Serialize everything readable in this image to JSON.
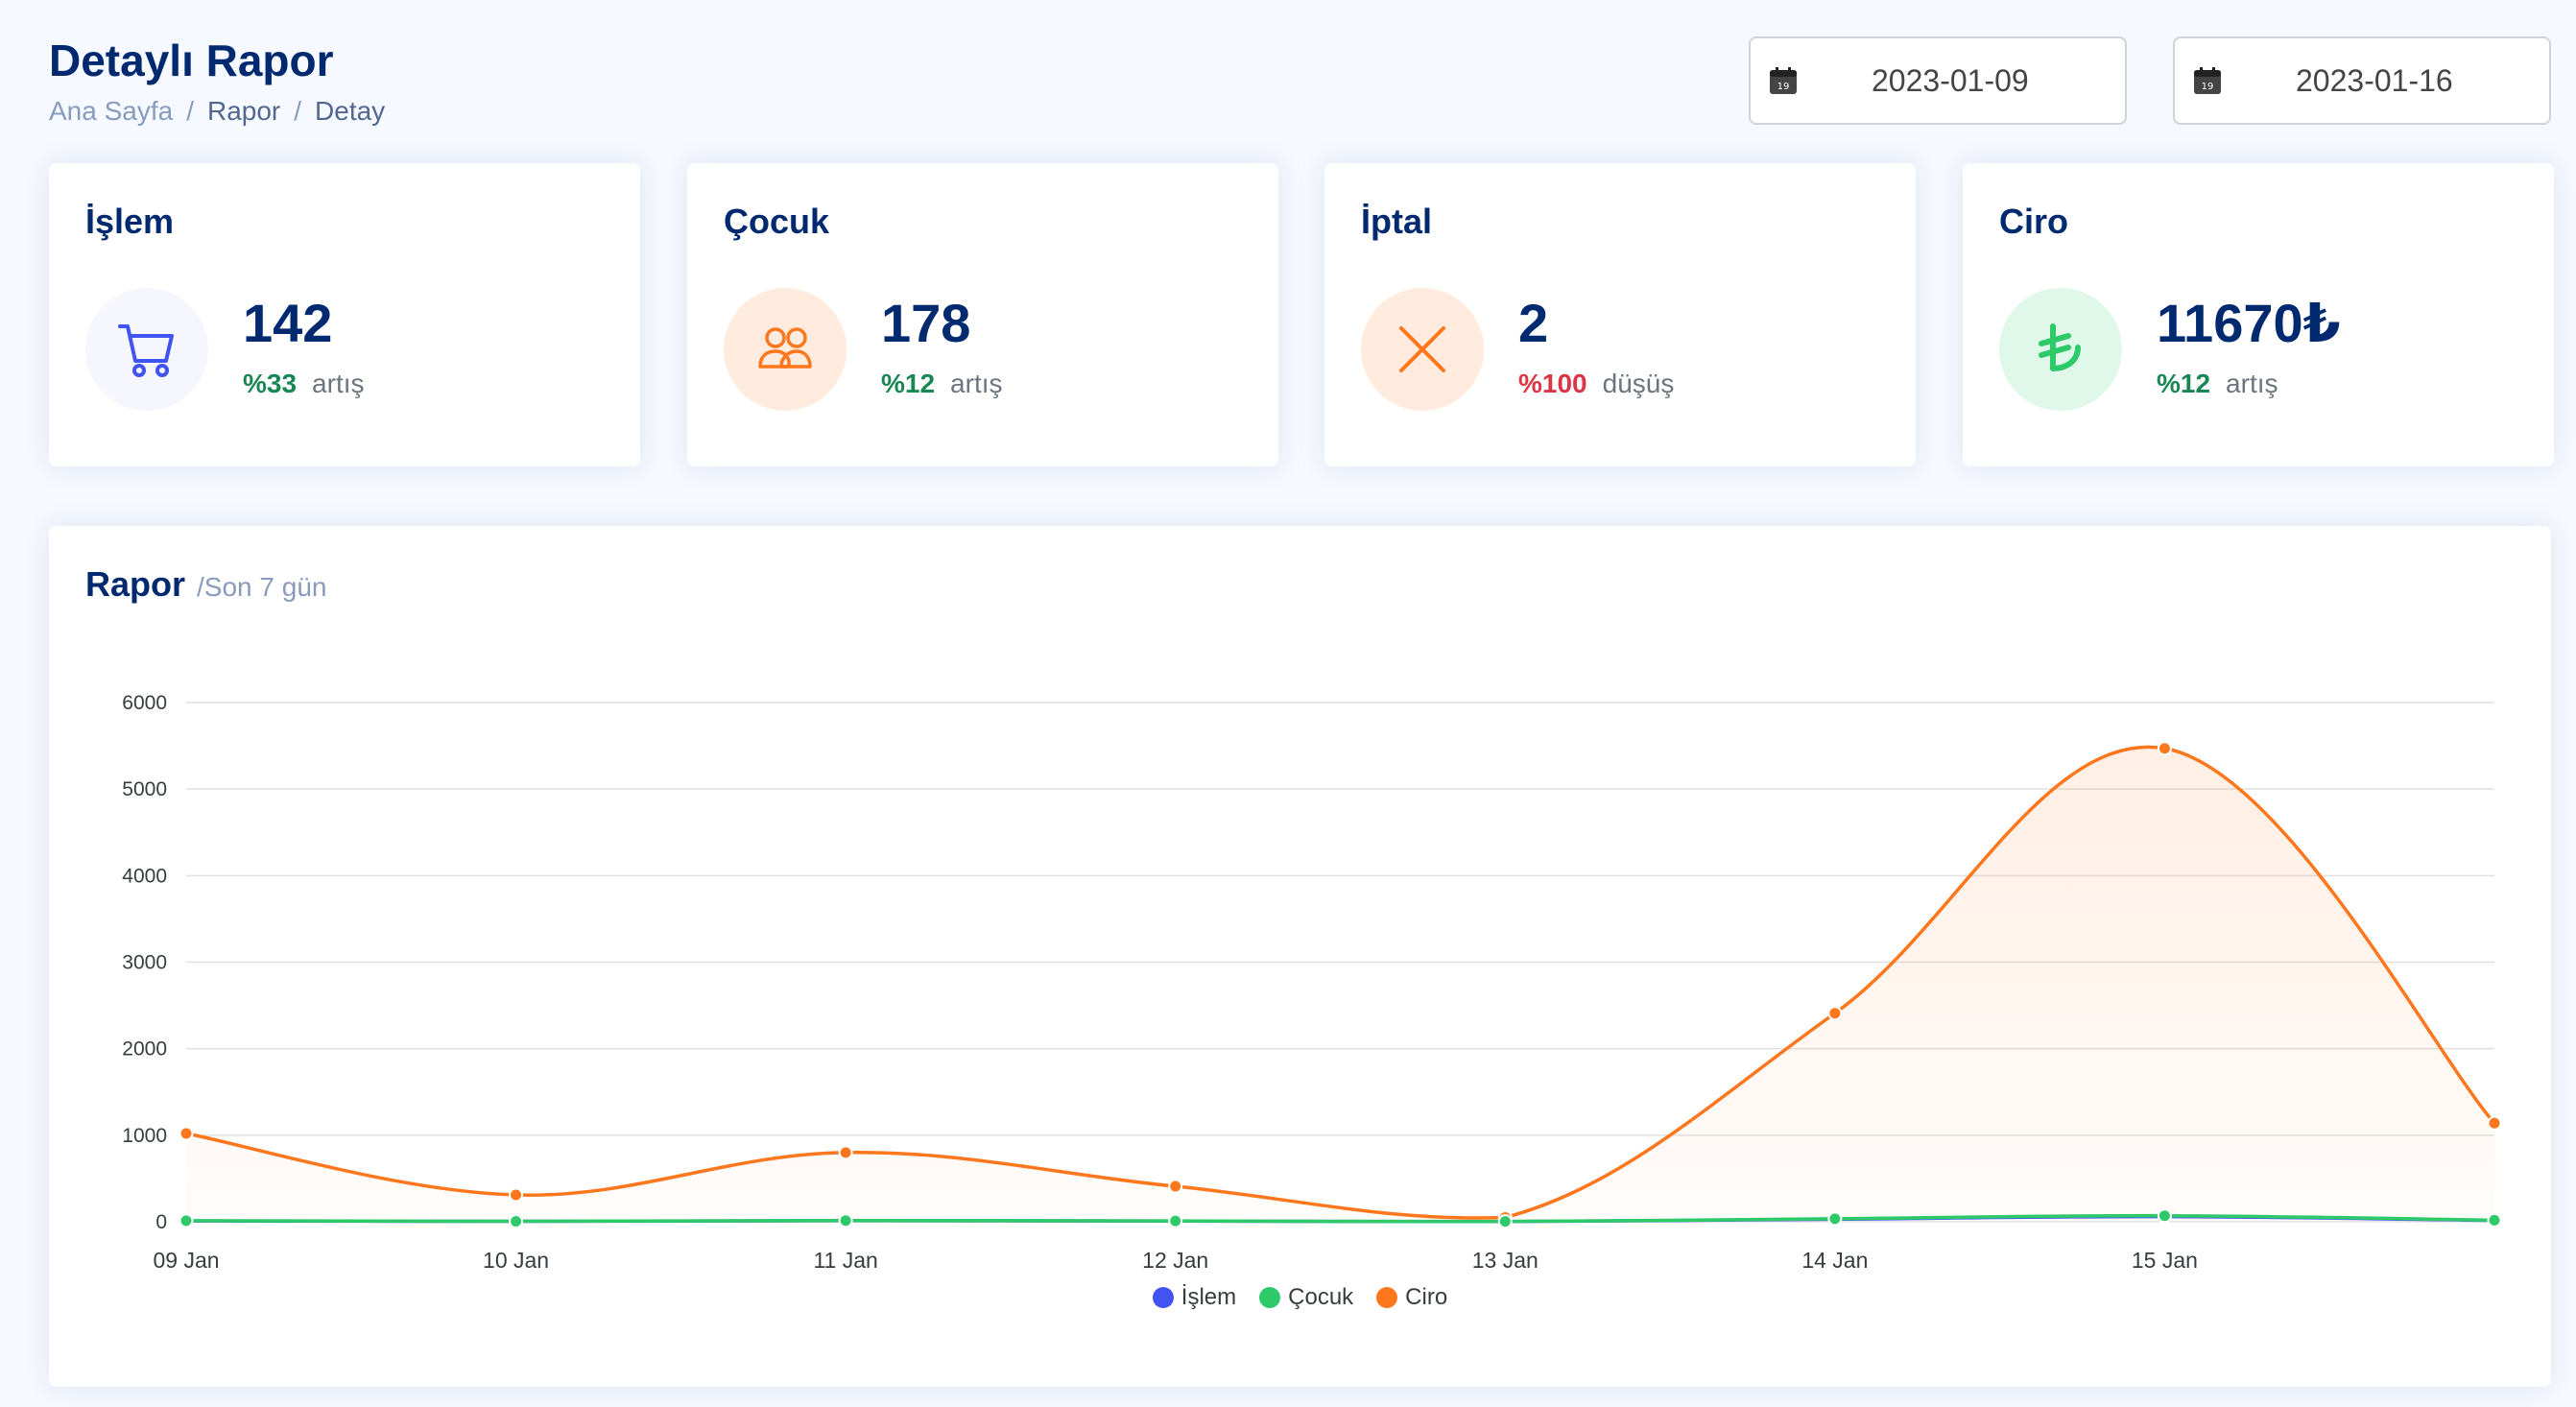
{
  "header": {
    "title": "Detaylı Rapor",
    "breadcrumb": [
      "Ana Sayfa",
      "Rapor",
      "Detay"
    ],
    "separator": "/"
  },
  "filters": {
    "start_date": "2023-01-09",
    "end_date": "2023-01-16",
    "calendar_icon_day": "19"
  },
  "cards": [
    {
      "title": "İşlem",
      "value": "142",
      "pct": "%33",
      "trend": "artış",
      "direction": "up",
      "icon": "cart-icon",
      "icon_color": "#4154f1",
      "icon_bg": "#f6f6fe"
    },
    {
      "title": "Çocuk",
      "value": "178",
      "pct": "%12",
      "trend": "artış",
      "direction": "up",
      "icon": "people-icon",
      "icon_color": "#ff771d",
      "icon_bg": "#ffecdf"
    },
    {
      "title": "İptal",
      "value": "2",
      "pct": "%100",
      "trend": "düşüş",
      "direction": "down",
      "icon": "x-icon",
      "icon_color": "#ff771d",
      "icon_bg": "#ffecdf"
    },
    {
      "title": "Ciro",
      "value": "11670₺",
      "pct": "%12",
      "trend": "artış",
      "direction": "up",
      "icon": "lira-icon",
      "icon_color": "#2eca6a",
      "icon_bg": "#e0f8e9"
    }
  ],
  "report": {
    "title": "Rapor",
    "subtitle": "/Son 7 gün"
  },
  "chart_data": {
    "type": "area",
    "categories": [
      "09 Jan",
      "10 Jan",
      "11 Jan",
      "12 Jan",
      "13 Jan",
      "14 Jan",
      "15 Jan",
      ""
    ],
    "ylim": [
      0,
      6000
    ],
    "yticks": [
      0,
      1000,
      2000,
      3000,
      4000,
      5000,
      6000
    ],
    "grid": true,
    "legend_position": "bottom-center",
    "series": [
      {
        "name": "İşlem",
        "color": "#4154f1",
        "values": [
          10,
          5,
          12,
          8,
          3,
          30,
          60,
          15
        ]
      },
      {
        "name": "Çocuk",
        "color": "#2eca6a",
        "values": [
          12,
          6,
          14,
          10,
          4,
          35,
          70,
          18
        ]
      },
      {
        "name": "Ciro",
        "color": "#ff771d",
        "values": [
          1020,
          310,
          800,
          410,
          50,
          2410,
          5470,
          1140
        ]
      }
    ]
  }
}
